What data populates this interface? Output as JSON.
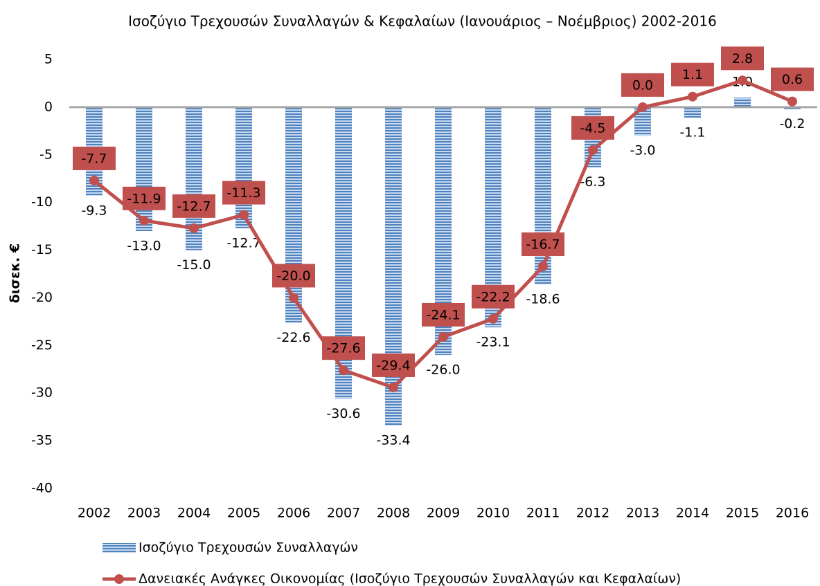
{
  "chart_data": {
    "type": "bar_line",
    "title": "Ισοζύγιο Τρεχουσών Συναλλαγών & Κεφαλαίων (Ιανουάριος – Νοέμβριος) 2002-2016",
    "ylabel": "δισεκ. €",
    "categories": [
      "2002",
      "2003",
      "2004",
      "2005",
      "2006",
      "2007",
      "2008",
      "2009",
      "2010",
      "2011",
      "2012",
      "2013",
      "2014",
      "2015",
      "2016"
    ],
    "series": [
      {
        "name": "Ισοζύγιο Τρεχουσών Συναλλαγών",
        "type": "bar",
        "color": "#4f81bd",
        "values": [
          -9.3,
          -13.0,
          -15.0,
          -12.7,
          -22.6,
          -30.6,
          -33.4,
          -26.0,
          -23.1,
          -18.6,
          -6.3,
          -3.0,
          -1.1,
          1.0,
          -0.2
        ],
        "value_labels": [
          "-9.3",
          "-13.0",
          "-15.0",
          "-12.7",
          "-22.6",
          "-30.6",
          "-33.4",
          "-26.0",
          "-23.1",
          "-18.6",
          "-6.3",
          "-3.0",
          "-1.1",
          "1.0",
          "-0.2"
        ]
      },
      {
        "name": "Δανειακές Ανάγκες Οικονομίας (Ισοζύγιο Τρεχουσών Συναλλαγών και Κεφαλαίων)",
        "type": "line",
        "color": "#c0504d",
        "values": [
          -7.7,
          -11.9,
          -12.7,
          -11.3,
          -20.0,
          -27.6,
          -29.4,
          -24.1,
          -22.2,
          -16.7,
          -4.5,
          0.0,
          1.1,
          2.8,
          0.6
        ],
        "value_labels": [
          "-7.7",
          "-11.9",
          "-12.7",
          "-11.3",
          "-20.0",
          "-27.6",
          "-29.4",
          "-24.1",
          "-22.2",
          "-16.7",
          "-4.5",
          "0.0",
          "1.1",
          "2.8",
          "0.6"
        ]
      }
    ],
    "ylim": [
      -40,
      5
    ],
    "yticks": [
      5,
      0,
      -5,
      -10,
      -15,
      -20,
      -25,
      -30,
      -35,
      -40
    ],
    "grid": false,
    "legend": "bottom"
  }
}
